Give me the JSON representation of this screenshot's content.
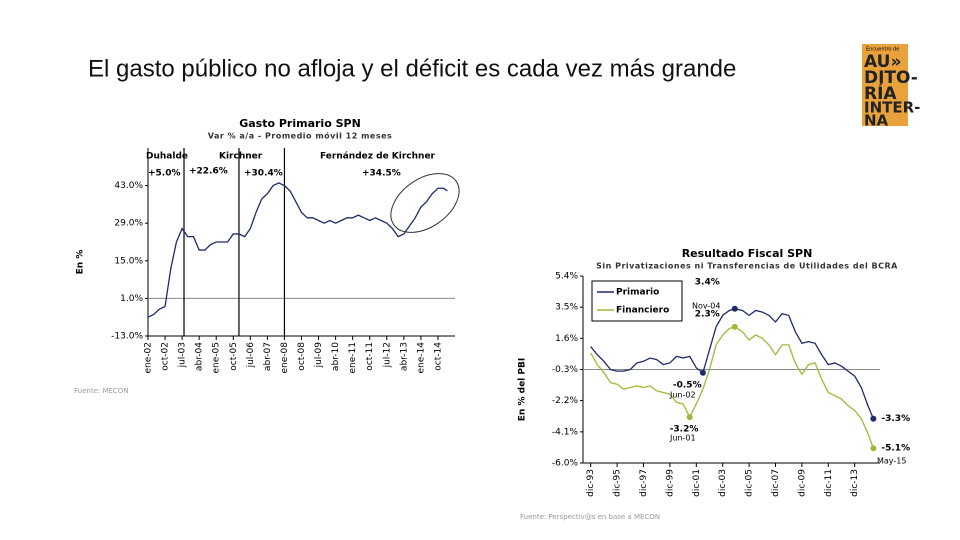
{
  "title": "El gasto público no afloja y el déficit es cada vez más grande",
  "logo": {
    "top": "Encuentro de",
    "lines": [
      "AU»",
      "DITO-",
      "RÍA",
      "INTER-",
      "NA"
    ]
  },
  "chart_data": [
    {
      "type": "line",
      "title": "Gasto Primario SPN",
      "subtitle": "Var % a/a - Promedio móvil 12 meses",
      "y_label": "En %",
      "source": "Fuente: MECON",
      "x": [
        "2002-01",
        "2002-04",
        "2002-07",
        "2002-10",
        "2003-01",
        "2003-04",
        "2003-07",
        "2003-10",
        "2004-01",
        "2004-04",
        "2004-07",
        "2004-10",
        "2005-01",
        "2005-04",
        "2005-07",
        "2005-10",
        "2006-01",
        "2006-04",
        "2006-07",
        "2006-10",
        "2007-01",
        "2007-04",
        "2007-07",
        "2007-10",
        "2008-01",
        "2008-04",
        "2008-07",
        "2008-10",
        "2009-01",
        "2009-04",
        "2009-07",
        "2009-10",
        "2010-01",
        "2010-04",
        "2010-07",
        "2010-10",
        "2011-01",
        "2011-04",
        "2011-07",
        "2011-10",
        "2012-01",
        "2012-04",
        "2012-07",
        "2012-10",
        "2013-01",
        "2013-04",
        "2013-07",
        "2013-10",
        "2014-01",
        "2014-04",
        "2014-07",
        "2014-10",
        "2015-01",
        "2015-03"
      ],
      "series": [
        {
          "name": "Gasto Primario",
          "color": "#1f2a6b",
          "values": [
            -6,
            -5,
            -3,
            -2,
            12,
            22,
            27,
            24,
            24,
            19,
            19,
            21,
            22,
            22,
            22,
            25,
            25,
            24,
            27,
            33,
            38,
            40,
            43,
            44,
            43,
            41,
            37,
            33,
            31,
            31,
            30,
            29,
            30,
            29,
            30,
            31,
            31,
            32,
            31,
            30,
            31,
            30,
            29,
            27,
            24,
            25,
            28,
            31,
            35,
            37,
            40,
            42,
            42,
            41
          ]
        }
      ],
      "xlim": [
        "2002-01",
        "2015-07"
      ],
      "xticks": [
        {
          "value": "2002-01",
          "label": "ene-02"
        },
        {
          "value": "2002-10",
          "label": "oct-02"
        },
        {
          "value": "2003-07",
          "label": "jul-03"
        },
        {
          "value": "2004-04",
          "label": "abr-04"
        },
        {
          "value": "2005-01",
          "label": "ene-05"
        },
        {
          "value": "2005-10",
          "label": "oct-05"
        },
        {
          "value": "2006-07",
          "label": "jul-06"
        },
        {
          "value": "2007-04",
          "label": "abr-07"
        },
        {
          "value": "2008-01",
          "label": "ene-08"
        },
        {
          "value": "2008-10",
          "label": "oct-08"
        },
        {
          "value": "2009-07",
          "label": "jul-09"
        },
        {
          "value": "2010-04",
          "label": "abr-10"
        },
        {
          "value": "2011-01",
          "label": "ene-11"
        },
        {
          "value": "2011-10",
          "label": "oct-11"
        },
        {
          "value": "2012-07",
          "label": "jul-12"
        },
        {
          "value": "2013-04",
          "label": "abr-13"
        },
        {
          "value": "2014-01",
          "label": "ene-14"
        },
        {
          "value": "2014-10",
          "label": "oct-14"
        }
      ],
      "ylim": [
        -13,
        57
      ],
      "yticks": [
        {
          "value": -13,
          "label": "-13.0%"
        },
        {
          "value": 1,
          "label": "1.0%"
        },
        {
          "value": 15,
          "label": "15.0%"
        },
        {
          "value": 29,
          "label": "29.0%"
        },
        {
          "value": 43,
          "label": "43.0%"
        }
      ],
      "hline": 1,
      "vlines": [
        "2003-08",
        "2006-01",
        "2008-01"
      ],
      "annotations": [
        "Duhalde",
        "Kirchner",
        "Fernández de Kirchner",
        "+5.0%",
        "+22.6%",
        "+30.4%",
        "+34.5%"
      ]
    },
    {
      "type": "line",
      "title": "Resultado Fiscal SPN",
      "subtitle": "Sin Privatizaciones ni Transferencias de Utilidades del BCRA",
      "y_label": "En % del PBI",
      "source": "Fuente: Perspectiv@s en base a MECON",
      "x": [
        "1993-12",
        "1994-06",
        "1994-12",
        "1995-06",
        "1995-12",
        "1996-06",
        "1996-12",
        "1997-06",
        "1997-12",
        "1998-06",
        "1998-12",
        "1999-06",
        "1999-12",
        "2000-06",
        "2000-12",
        "2001-06",
        "2001-12",
        "2002-06",
        "2002-12",
        "2003-06",
        "2003-12",
        "2004-06",
        "2004-11",
        "2005-06",
        "2005-12",
        "2006-06",
        "2006-12",
        "2007-06",
        "2007-12",
        "2008-06",
        "2008-12",
        "2009-06",
        "2009-12",
        "2010-06",
        "2010-12",
        "2011-06",
        "2011-12",
        "2012-06",
        "2012-12",
        "2013-06",
        "2013-12",
        "2014-06",
        "2014-12",
        "2015-05"
      ],
      "series": [
        {
          "name": "Primario",
          "color": "#1f2a6b",
          "values": [
            1.1,
            0.6,
            0.2,
            -0.3,
            -0.4,
            -0.4,
            -0.3,
            0.1,
            0.2,
            0.4,
            0.3,
            0.0,
            0.1,
            0.5,
            0.4,
            0.5,
            -0.2,
            -0.5,
            0.9,
            2.3,
            3.0,
            3.3,
            3.4,
            3.3,
            3.0,
            3.3,
            3.2,
            3.0,
            2.6,
            3.1,
            3.0,
            2.0,
            1.3,
            1.4,
            1.3,
            0.6,
            0.0,
            0.1,
            -0.1,
            -0.4,
            -0.7,
            -1.4,
            -2.5,
            -3.3
          ],
          "value_labels": [
            null,
            null,
            null,
            null,
            null,
            null,
            null,
            null,
            null,
            null,
            null,
            null,
            null,
            null,
            null,
            null,
            null,
            "-0.5%",
            null,
            null,
            null,
            null,
            "3.4%",
            null,
            null,
            null,
            null,
            null,
            null,
            null,
            null,
            null,
            null,
            null,
            null,
            null,
            null,
            null,
            null,
            null,
            null,
            null,
            null,
            "-3.3%"
          ]
        },
        {
          "name": "Financiero",
          "color": "#9bbb3b",
          "values": [
            0.7,
            0.0,
            -0.5,
            -1.1,
            -1.2,
            -1.5,
            -1.4,
            -1.3,
            -1.4,
            -1.3,
            -1.6,
            -1.7,
            -1.8,
            -2.3,
            -2.4,
            -3.2,
            -2.4,
            -1.5,
            -0.3,
            1.2,
            1.8,
            2.2,
            2.3,
            2.0,
            1.5,
            1.8,
            1.6,
            1.2,
            0.6,
            1.2,
            1.2,
            0.1,
            -0.6,
            0.0,
            0.1,
            -0.9,
            -1.7,
            -1.9,
            -2.1,
            -2.5,
            -2.8,
            -3.3,
            -4.2,
            -5.1
          ],
          "value_labels": [
            null,
            null,
            null,
            null,
            null,
            null,
            null,
            null,
            null,
            null,
            null,
            null,
            null,
            null,
            null,
            "-3.2%",
            null,
            null,
            null,
            null,
            null,
            null,
            "2.3%",
            null,
            null,
            null,
            null,
            null,
            null,
            null,
            null,
            null,
            null,
            null,
            null,
            null,
            null,
            null,
            null,
            null,
            null,
            null,
            null,
            "-5.1%"
          ]
        }
      ],
      "xlim": [
        "1993-05",
        "2015-11"
      ],
      "xticks": [
        {
          "value": "1993-12",
          "label": "dic-93"
        },
        {
          "value": "1995-12",
          "label": "dic-95"
        },
        {
          "value": "1997-12",
          "label": "dic-97"
        },
        {
          "value": "1999-12",
          "label": "dic-99"
        },
        {
          "value": "2001-12",
          "label": "dic-01"
        },
        {
          "value": "2003-12",
          "label": "dic-03"
        },
        {
          "value": "2005-12",
          "label": "dic-05"
        },
        {
          "value": "2007-12",
          "label": "dic-07"
        },
        {
          "value": "2009-12",
          "label": "dic-09"
        },
        {
          "value": "2011-12",
          "label": "dic-11"
        },
        {
          "value": "2013-12",
          "label": "dic-13"
        }
      ],
      "ylim": [
        -6.0,
        5.4
      ],
      "yticks": [
        {
          "value": -6.0,
          "label": "-6.0%"
        },
        {
          "value": -4.1,
          "label": "-4.1%"
        },
        {
          "value": -2.2,
          "label": "-2.2%"
        },
        {
          "value": -0.3,
          "label": "-0.3%"
        },
        {
          "value": 1.6,
          "label": "1.6%"
        },
        {
          "value": 3.5,
          "label": "3.5%"
        },
        {
          "value": 5.4,
          "label": "5.4%"
        }
      ],
      "hline": -0.3,
      "legend": "upper left",
      "annotations": [
        "Nov-04",
        "Jun-02",
        "Jun-01",
        "May-15"
      ]
    }
  ]
}
